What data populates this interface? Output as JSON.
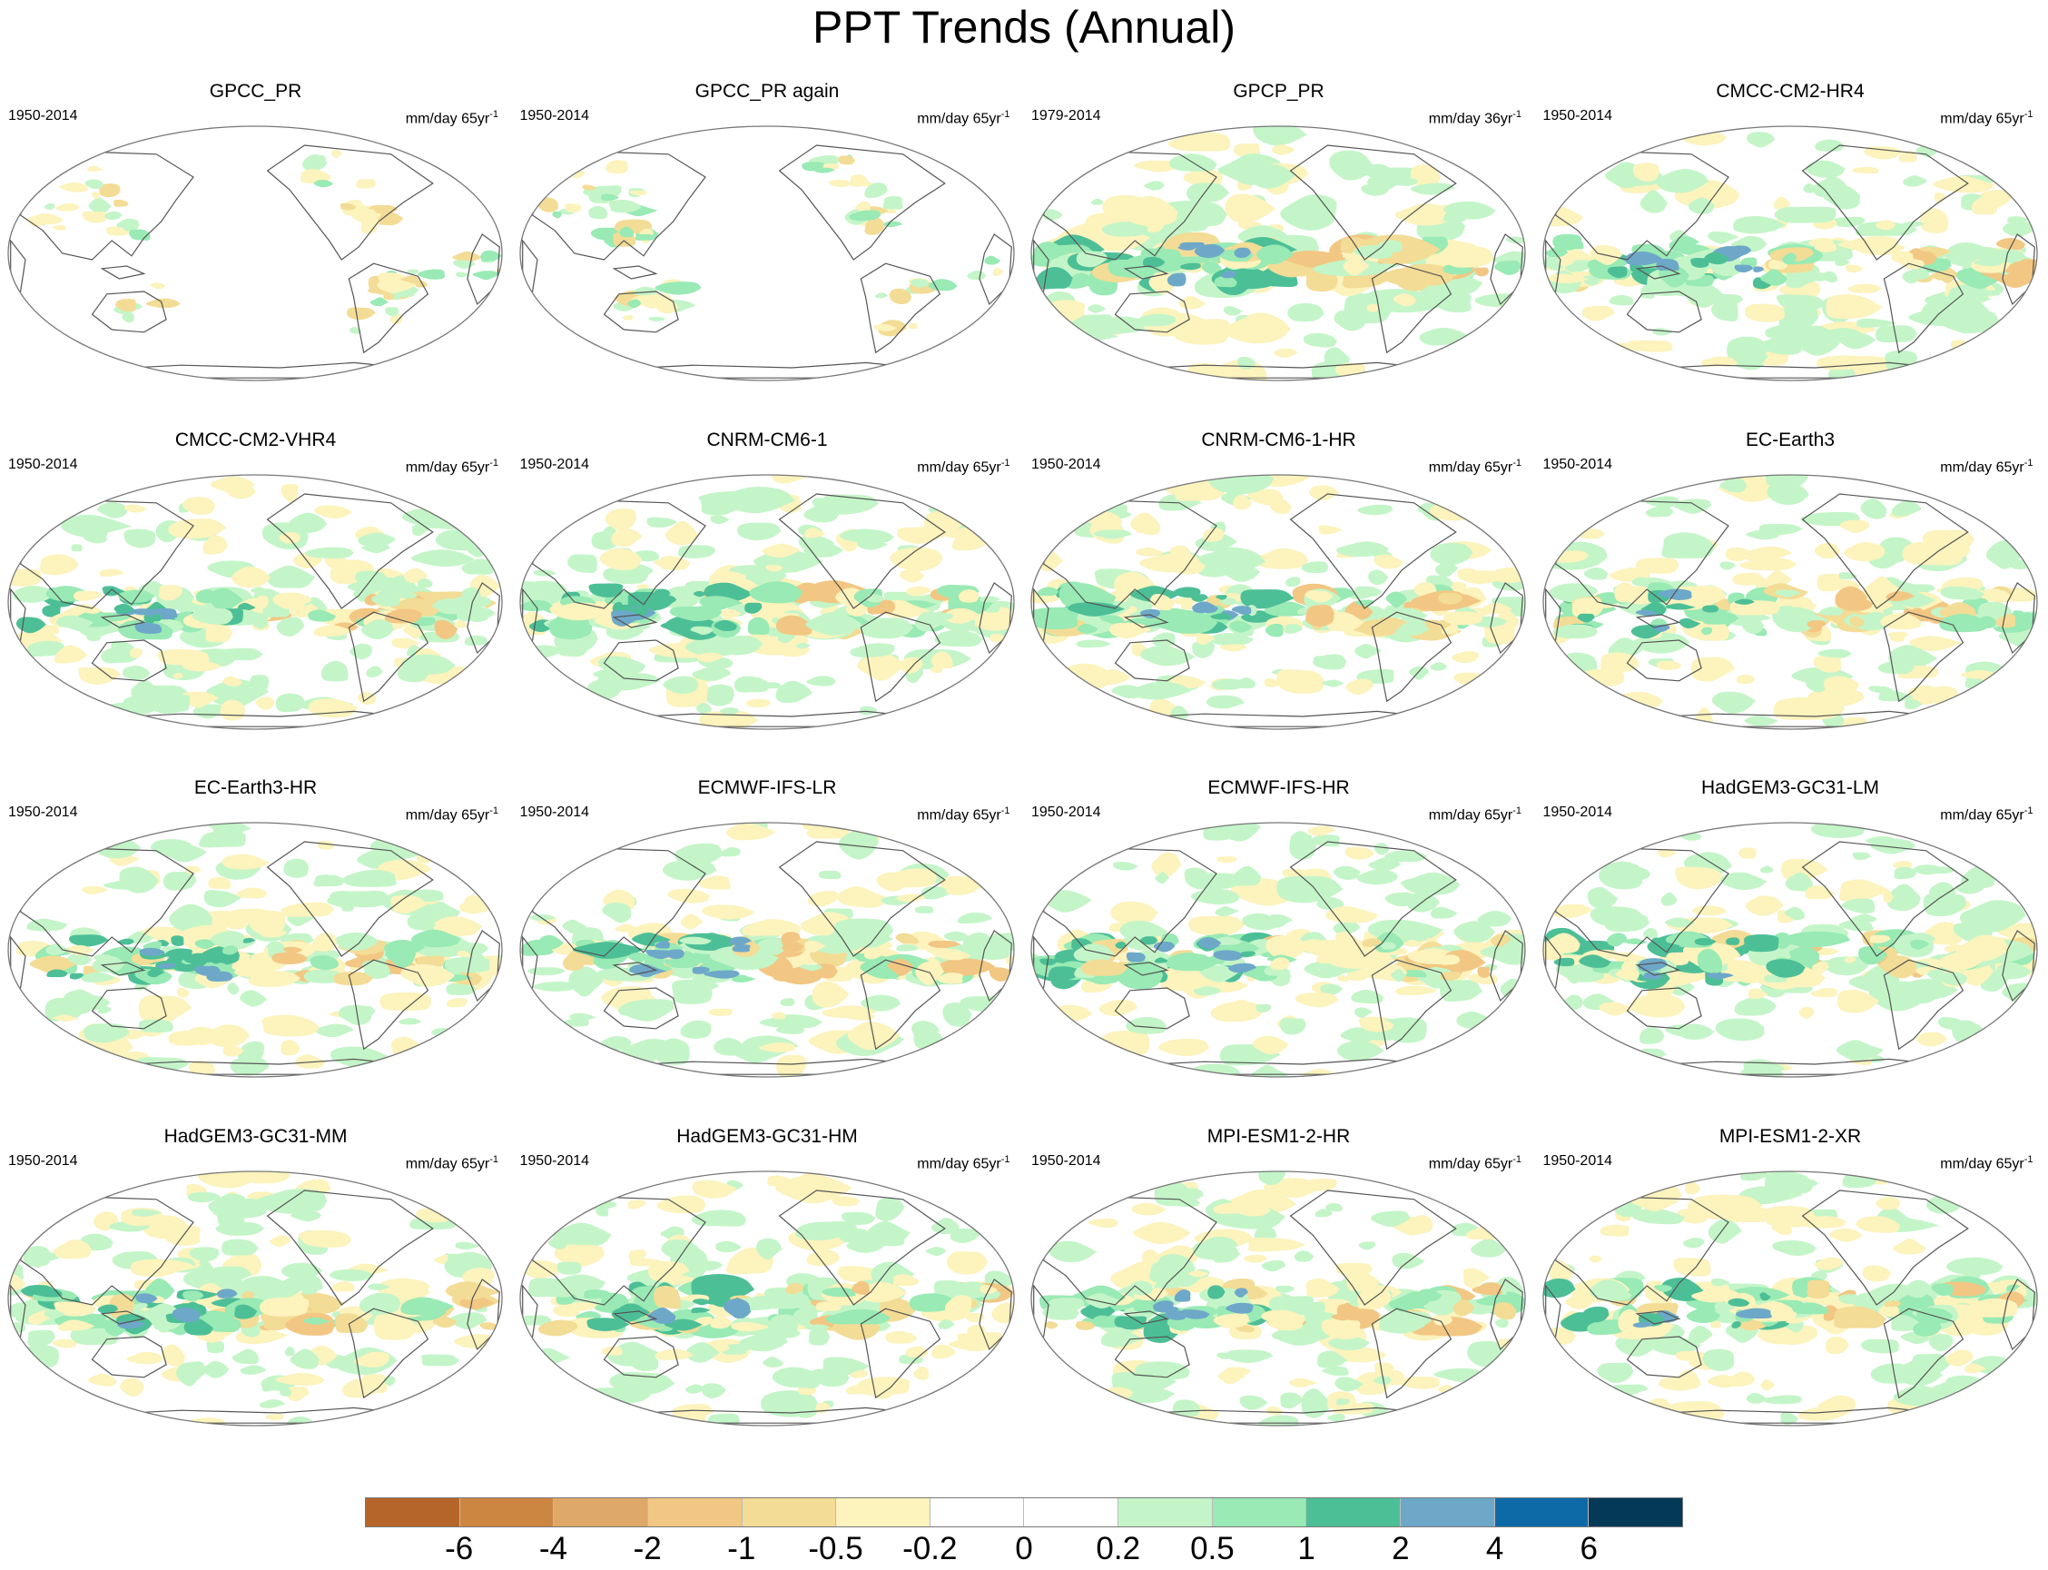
{
  "title": "PPT Trends (Annual)",
  "panels": [
    {
      "title": "GPCC_PR",
      "period": "1950-2014",
      "units": "mm/day 65yr",
      "exp": "-1",
      "kind": "obs"
    },
    {
      "title": "GPCC_PR again",
      "period": "1950-2014",
      "units": "mm/day 65yr",
      "exp": "-1",
      "kind": "obs"
    },
    {
      "title": "GPCP_PR",
      "period": "1979-2014",
      "units": "mm/day 36yr",
      "exp": "-1",
      "kind": "gpcp"
    },
    {
      "title": "CMCC-CM2-HR4",
      "period": "1950-2014",
      "units": "mm/day 65yr",
      "exp": "-1",
      "kind": "model"
    },
    {
      "title": "CMCC-CM2-VHR4",
      "period": "1950-2014",
      "units": "mm/day 65yr",
      "exp": "-1",
      "kind": "model"
    },
    {
      "title": "CNRM-CM6-1",
      "period": "1950-2014",
      "units": "mm/day 65yr",
      "exp": "-1",
      "kind": "model"
    },
    {
      "title": "CNRM-CM6-1-HR",
      "period": "1950-2014",
      "units": "mm/day 65yr",
      "exp": "-1",
      "kind": "model"
    },
    {
      "title": "EC-Earth3",
      "period": "1950-2014",
      "units": "mm/day 65yr",
      "exp": "-1",
      "kind": "model"
    },
    {
      "title": "EC-Earth3-HR",
      "period": "1950-2014",
      "units": "mm/day 65yr",
      "exp": "-1",
      "kind": "model"
    },
    {
      "title": "ECMWF-IFS-LR",
      "period": "1950-2014",
      "units": "mm/day 65yr",
      "exp": "-1",
      "kind": "model"
    },
    {
      "title": "ECMWF-IFS-HR",
      "period": "1950-2014",
      "units": "mm/day 65yr",
      "exp": "-1",
      "kind": "model"
    },
    {
      "title": "HadGEM3-GC31-LM",
      "period": "1950-2014",
      "units": "mm/day 65yr",
      "exp": "-1",
      "kind": "model"
    },
    {
      "title": "HadGEM3-GC31-MM",
      "period": "1950-2014",
      "units": "mm/day 65yr",
      "exp": "-1",
      "kind": "model"
    },
    {
      "title": "HadGEM3-GC31-HM",
      "period": "1950-2014",
      "units": "mm/day 65yr",
      "exp": "-1",
      "kind": "model"
    },
    {
      "title": "MPI-ESM1-2-HR",
      "period": "1950-2014",
      "units": "mm/day 65yr",
      "exp": "-1",
      "kind": "model"
    },
    {
      "title": "MPI-ESM1-2-XR",
      "period": "1950-2014",
      "units": "mm/day 65yr",
      "exp": "-1",
      "kind": "model"
    }
  ],
  "colorbar": {
    "colors": [
      "#b5652a",
      "#cd8641",
      "#de a868",
      "#f2c783",
      "#f3dc95",
      "#fcf3bd",
      "#ffffff",
      "#ffffff",
      "#c4f5c8",
      "#99eab4",
      "#4dbf97",
      "#6ea8c9",
      "#0d6aa7",
      "#043a58"
    ],
    "labels": [
      "-6",
      "-4",
      "-2",
      "-1",
      "-0.5",
      "-0.2",
      "0",
      "0.2",
      "0.5",
      "1",
      "2",
      "4",
      "6"
    ]
  }
}
